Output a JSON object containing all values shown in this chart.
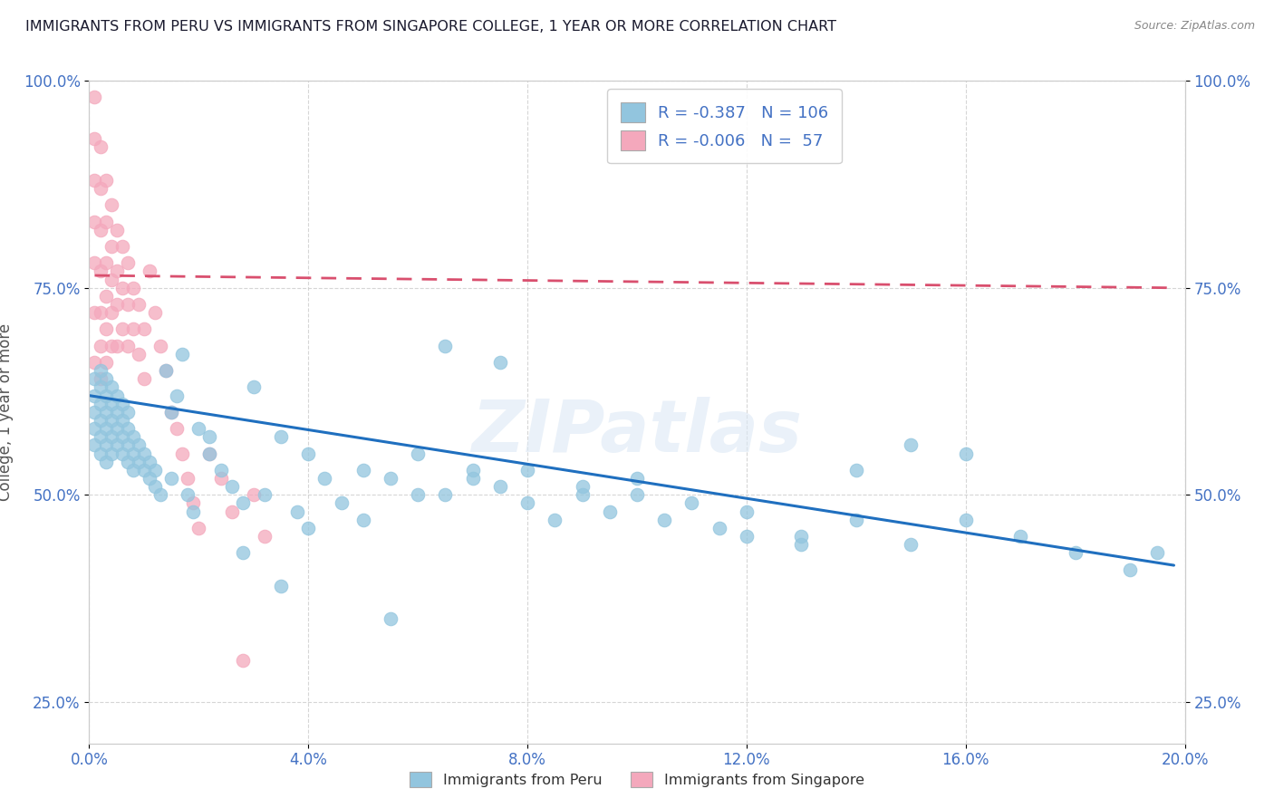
{
  "title": "IMMIGRANTS FROM PERU VS IMMIGRANTS FROM SINGAPORE COLLEGE, 1 YEAR OR MORE CORRELATION CHART",
  "source_text": "Source: ZipAtlas.com",
  "ylabel": "College, 1 year or more",
  "legend_labels": [
    "Immigrants from Peru",
    "Immigrants from Singapore"
  ],
  "legend_R": [
    -0.387,
    -0.006
  ],
  "legend_N": [
    106,
    57
  ],
  "blue_color": "#92c5de",
  "pink_color": "#f4a8bc",
  "blue_line_color": "#1f6fbf",
  "pink_line_color": "#d94f6e",
  "watermark": "ZIPatlas",
  "xlim": [
    0.0,
    0.2
  ],
  "ylim": [
    0.2,
    1.0
  ],
  "xticks": [
    0.0,
    0.04,
    0.08,
    0.12,
    0.16,
    0.2
  ],
  "yticks": [
    0.25,
    0.5,
    0.75,
    1.0
  ],
  "xticklabels": [
    "0.0%",
    "4.0%",
    "8.0%",
    "12.0%",
    "16.0%",
    "20.0%"
  ],
  "yticklabels": [
    "25.0%",
    "50.0%",
    "75.0%",
    "100.0%"
  ],
  "peru_x": [
    0.001,
    0.001,
    0.001,
    0.001,
    0.001,
    0.002,
    0.002,
    0.002,
    0.002,
    0.002,
    0.002,
    0.003,
    0.003,
    0.003,
    0.003,
    0.003,
    0.003,
    0.004,
    0.004,
    0.004,
    0.004,
    0.004,
    0.005,
    0.005,
    0.005,
    0.005,
    0.006,
    0.006,
    0.006,
    0.006,
    0.007,
    0.007,
    0.007,
    0.007,
    0.008,
    0.008,
    0.008,
    0.009,
    0.009,
    0.01,
    0.01,
    0.011,
    0.011,
    0.012,
    0.012,
    0.013,
    0.014,
    0.015,
    0.016,
    0.017,
    0.018,
    0.019,
    0.02,
    0.022,
    0.024,
    0.026,
    0.028,
    0.03,
    0.032,
    0.035,
    0.038,
    0.04,
    0.043,
    0.046,
    0.05,
    0.055,
    0.06,
    0.065,
    0.07,
    0.075,
    0.08,
    0.085,
    0.09,
    0.095,
    0.1,
    0.105,
    0.11,
    0.115,
    0.12,
    0.13,
    0.14,
    0.15,
    0.16,
    0.17,
    0.18,
    0.19,
    0.195,
    0.12,
    0.13,
    0.065,
    0.075,
    0.055,
    0.035,
    0.028,
    0.022,
    0.015,
    0.04,
    0.05,
    0.07,
    0.06,
    0.08,
    0.09,
    0.1,
    0.15,
    0.14,
    0.16
  ],
  "peru_y": [
    0.62,
    0.6,
    0.58,
    0.56,
    0.64,
    0.61,
    0.59,
    0.57,
    0.55,
    0.63,
    0.65,
    0.6,
    0.58,
    0.56,
    0.54,
    0.62,
    0.64,
    0.59,
    0.57,
    0.55,
    0.61,
    0.63,
    0.58,
    0.56,
    0.6,
    0.62,
    0.57,
    0.55,
    0.59,
    0.61,
    0.56,
    0.54,
    0.58,
    0.6,
    0.55,
    0.53,
    0.57,
    0.54,
    0.56,
    0.53,
    0.55,
    0.52,
    0.54,
    0.51,
    0.53,
    0.5,
    0.65,
    0.52,
    0.62,
    0.67,
    0.5,
    0.48,
    0.58,
    0.55,
    0.53,
    0.51,
    0.49,
    0.63,
    0.5,
    0.57,
    0.48,
    0.55,
    0.52,
    0.49,
    0.53,
    0.52,
    0.55,
    0.5,
    0.53,
    0.51,
    0.49,
    0.47,
    0.5,
    0.48,
    0.5,
    0.47,
    0.49,
    0.46,
    0.48,
    0.45,
    0.47,
    0.44,
    0.47,
    0.45,
    0.43,
    0.41,
    0.43,
    0.45,
    0.44,
    0.68,
    0.66,
    0.35,
    0.39,
    0.43,
    0.57,
    0.6,
    0.46,
    0.47,
    0.52,
    0.5,
    0.53,
    0.51,
    0.52,
    0.56,
    0.53,
    0.55
  ],
  "singapore_x": [
    0.001,
    0.001,
    0.001,
    0.001,
    0.001,
    0.001,
    0.001,
    0.002,
    0.002,
    0.002,
    0.002,
    0.002,
    0.002,
    0.002,
    0.003,
    0.003,
    0.003,
    0.003,
    0.003,
    0.003,
    0.004,
    0.004,
    0.004,
    0.004,
    0.004,
    0.005,
    0.005,
    0.005,
    0.005,
    0.006,
    0.006,
    0.006,
    0.007,
    0.007,
    0.007,
    0.008,
    0.008,
    0.009,
    0.009,
    0.01,
    0.01,
    0.011,
    0.012,
    0.013,
    0.014,
    0.015,
    0.016,
    0.017,
    0.018,
    0.019,
    0.02,
    0.022,
    0.024,
    0.026,
    0.028,
    0.03,
    0.032
  ],
  "singapore_y": [
    0.98,
    0.93,
    0.88,
    0.83,
    0.78,
    0.72,
    0.66,
    0.92,
    0.87,
    0.82,
    0.77,
    0.72,
    0.68,
    0.64,
    0.88,
    0.83,
    0.78,
    0.74,
    0.7,
    0.66,
    0.85,
    0.8,
    0.76,
    0.72,
    0.68,
    0.82,
    0.77,
    0.73,
    0.68,
    0.8,
    0.75,
    0.7,
    0.78,
    0.73,
    0.68,
    0.75,
    0.7,
    0.73,
    0.67,
    0.7,
    0.64,
    0.77,
    0.72,
    0.68,
    0.65,
    0.6,
    0.58,
    0.55,
    0.52,
    0.49,
    0.46,
    0.55,
    0.52,
    0.48,
    0.3,
    0.5,
    0.45
  ],
  "peru_line_x0": 0.0,
  "peru_line_x1": 0.198,
  "peru_line_y0": 0.62,
  "peru_line_y1": 0.415,
  "sing_line_x0": 0.001,
  "sing_line_x1": 0.198,
  "sing_line_y0": 0.765,
  "sing_line_y1": 0.75
}
